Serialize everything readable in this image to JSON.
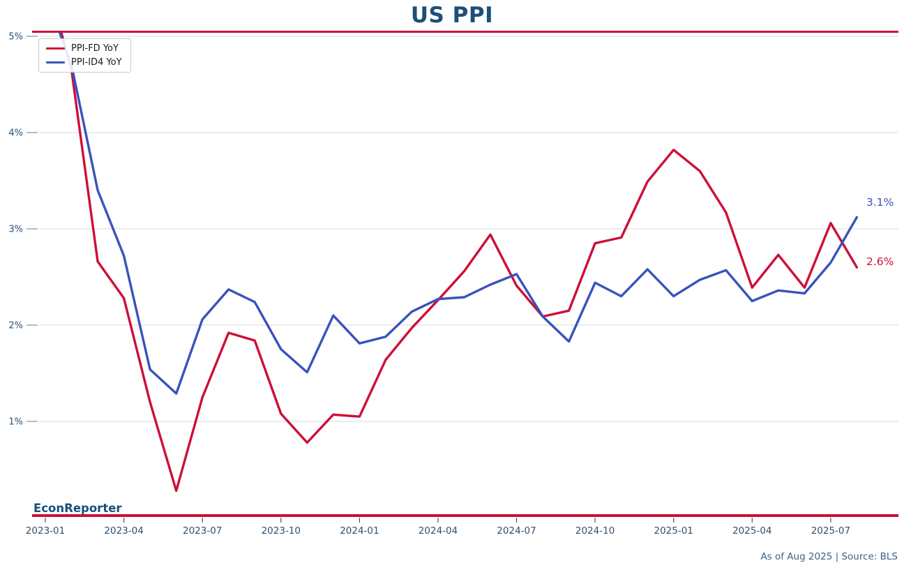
{
  "branding": {
    "watermark": "EconReporter",
    "footnote": "As of Aug 2025 | Source: BLS"
  },
  "colors": {
    "accent": "#cd0f37",
    "title_color": "#1e4e79",
    "axis_label_color": "#2e5170",
    "grid_color": "#d9d9d9",
    "tick_color": "#8a97a5",
    "watermark_color": "#17507c",
    "footnote_color": "#3c6285"
  },
  "chart_data": {
    "type": "line",
    "title": "US PPI",
    "xlabel": "",
    "ylabel": "",
    "ylim": [
      0,
      5.05
    ],
    "grid": true,
    "legend_position": "upper left",
    "x": [
      "2023-01",
      "2023-02",
      "2023-03",
      "2023-04",
      "2023-05",
      "2023-06",
      "2023-07",
      "2023-08",
      "2023-09",
      "2023-10",
      "2023-11",
      "2023-12",
      "2024-01",
      "2024-02",
      "2024-03",
      "2024-04",
      "2024-05",
      "2024-06",
      "2024-07",
      "2024-08",
      "2024-09",
      "2024-10",
      "2024-11",
      "2024-12",
      "2025-01",
      "2025-02",
      "2025-03",
      "2025-04",
      "2025-05",
      "2025-06",
      "2025-07",
      "2025-08"
    ],
    "xticks": [
      "2023-01",
      "2023-04",
      "2023-07",
      "2023-10",
      "2024-01",
      "2024-04",
      "2024-07",
      "2024-10",
      "2025-01",
      "2025-04",
      "2025-07"
    ],
    "yticks": [
      {
        "value": 1,
        "label": "1%"
      },
      {
        "value": 2,
        "label": "2%"
      },
      {
        "value": 3,
        "label": "3%"
      },
      {
        "value": 4,
        "label": "4%"
      },
      {
        "value": 5,
        "label": "5%"
      }
    ],
    "series": [
      {
        "name": "PPI-FD YoY",
        "color": "#cd0f37",
        "end_label": "2.6%",
        "values": [
          5.65,
          4.65,
          2.66,
          2.28,
          1.2,
          0.28,
          1.25,
          1.92,
          1.84,
          1.08,
          0.78,
          1.07,
          1.05,
          1.64,
          1.97,
          2.26,
          2.56,
          2.94,
          2.41,
          2.09,
          2.15,
          2.85,
          2.91,
          3.49,
          3.82,
          3.6,
          3.17,
          2.39,
          2.73,
          2.39,
          3.06,
          2.6
        ]
      },
      {
        "name": "PPI-ID4 YoY",
        "color": "#3a52bc",
        "end_label": "3.1%",
        "values": [
          5.45,
          4.7,
          3.4,
          2.72,
          1.54,
          1.29,
          2.06,
          2.37,
          2.24,
          1.75,
          1.51,
          2.1,
          1.81,
          1.88,
          2.14,
          2.27,
          2.29,
          2.42,
          2.53,
          2.09,
          1.83,
          2.44,
          2.3,
          2.58,
          2.3,
          2.47,
          2.57,
          2.25,
          2.36,
          2.33,
          2.65,
          3.12
        ]
      }
    ]
  }
}
